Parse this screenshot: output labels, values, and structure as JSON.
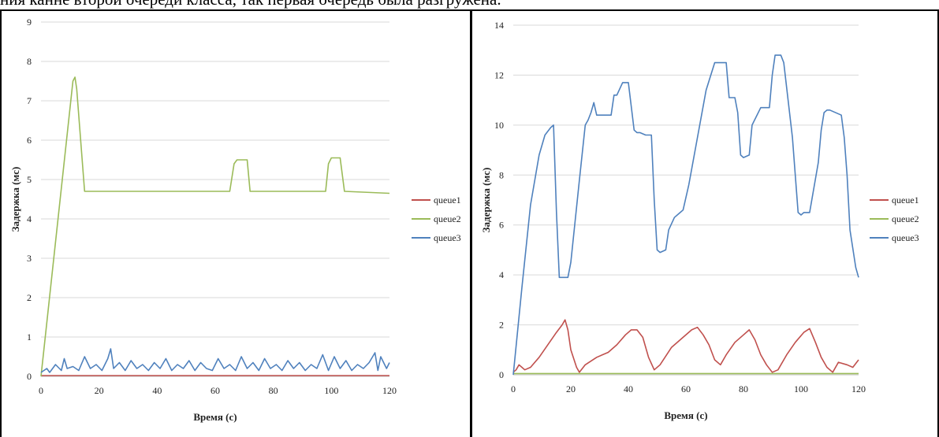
{
  "caption": "ния канне второй очереди класса, так первая очередь была разгружена.",
  "chart_data": [
    {
      "type": "line",
      "xlabel": "Время (с)",
      "ylabel": "Задержка (мс)",
      "xlim": [
        0,
        120
      ],
      "ylim": [
        0,
        9
      ],
      "xticks": [
        0,
        20,
        40,
        60,
        80,
        100,
        120
      ],
      "yticks": [
        0,
        1,
        2,
        3,
        4,
        5,
        6,
        7,
        8,
        9
      ],
      "grid": "horizontal",
      "legend": "right",
      "series": [
        {
          "name": "queue1",
          "color": "#c0504d",
          "x": [
            0,
            120
          ],
          "y": [
            0.02,
            0.02
          ]
        },
        {
          "name": "queue2",
          "color": "#9bbb59",
          "x": [
            0,
            11,
            11.7,
            12.3,
            15,
            16,
            40,
            65,
            66.5,
            67.5,
            71,
            72,
            98,
            99,
            100,
            103,
            104.5,
            120
          ],
          "y": [
            0,
            7.5,
            7.6,
            7.3,
            4.7,
            4.7,
            4.7,
            4.7,
            5.4,
            5.5,
            5.5,
            4.7,
            4.7,
            5.4,
            5.55,
            5.55,
            4.7,
            4.65
          ]
        },
        {
          "name": "queue3",
          "color": "#4f81bd",
          "x": [
            0,
            2,
            3,
            5,
            7,
            8,
            9,
            11,
            13,
            15,
            17,
            19,
            21,
            23,
            24,
            25,
            27,
            29,
            31,
            33,
            35,
            37,
            39,
            41,
            43,
            45,
            47,
            49,
            51,
            53,
            55,
            57,
            59,
            61,
            63,
            65,
            67,
            69,
            71,
            73,
            75,
            77,
            79,
            81,
            83,
            85,
            87,
            89,
            91,
            93,
            95,
            97,
            99,
            101,
            103,
            105,
            107,
            109,
            111,
            113,
            115,
            116,
            117,
            119,
            120
          ],
          "y": [
            0.1,
            0.2,
            0.1,
            0.3,
            0.15,
            0.45,
            0.2,
            0.25,
            0.15,
            0.5,
            0.2,
            0.3,
            0.15,
            0.45,
            0.7,
            0.2,
            0.35,
            0.15,
            0.4,
            0.2,
            0.3,
            0.15,
            0.35,
            0.2,
            0.45,
            0.15,
            0.3,
            0.2,
            0.4,
            0.15,
            0.35,
            0.2,
            0.15,
            0.45,
            0.2,
            0.3,
            0.15,
            0.5,
            0.2,
            0.35,
            0.15,
            0.45,
            0.2,
            0.3,
            0.15,
            0.4,
            0.2,
            0.35,
            0.15,
            0.3,
            0.2,
            0.55,
            0.15,
            0.5,
            0.2,
            0.4,
            0.15,
            0.3,
            0.2,
            0.35,
            0.6,
            0.15,
            0.5,
            0.2,
            0.35
          ]
        }
      ]
    },
    {
      "type": "line",
      "xlabel": "Время (с)",
      "ylabel": "Задержка (мс)",
      "xlim": [
        0,
        120
      ],
      "ylim": [
        0,
        14
      ],
      "xticks": [
        0,
        20,
        40,
        60,
        80,
        100,
        120
      ],
      "yticks": [
        0,
        2,
        4,
        6,
        8,
        10,
        12,
        14
      ],
      "grid": "horizontal",
      "legend": "right",
      "series": [
        {
          "name": "queue1",
          "color": "#c0504d",
          "x": [
            0,
            1,
            2,
            3,
            4,
            6,
            9,
            12,
            15,
            17,
            18,
            19,
            20,
            22,
            23,
            25,
            29,
            33,
            36,
            39,
            41,
            43,
            45,
            47,
            49,
            51,
            55,
            59,
            62,
            64,
            66,
            68,
            70,
            72,
            74,
            77,
            80,
            82,
            84,
            86,
            88,
            90,
            92,
            95,
            98,
            101,
            103,
            105,
            107,
            109,
            111,
            113,
            116,
            118,
            120
          ],
          "y": [
            0.1,
            0.2,
            0.4,
            0.3,
            0.2,
            0.3,
            0.7,
            1.2,
            1.7,
            2.0,
            2.2,
            1.8,
            1.0,
            0.3,
            0.1,
            0.4,
            0.7,
            0.9,
            1.2,
            1.6,
            1.8,
            1.8,
            1.5,
            0.7,
            0.2,
            0.4,
            1.1,
            1.5,
            1.8,
            1.9,
            1.6,
            1.2,
            0.6,
            0.4,
            0.8,
            1.3,
            1.6,
            1.8,
            1.4,
            0.8,
            0.4,
            0.1,
            0.2,
            0.8,
            1.3,
            1.7,
            1.85,
            1.3,
            0.7,
            0.3,
            0.1,
            0.5,
            0.4,
            0.3,
            0.6
          ]
        },
        {
          "name": "queue2",
          "color": "#9bbb59",
          "x": [
            0,
            30,
            60,
            90,
            120
          ],
          "y": [
            0.05,
            0.05,
            0.05,
            0.05,
            0.05
          ]
        },
        {
          "name": "queue3",
          "color": "#4f81bd",
          "x": [
            0,
            3,
            6,
            9,
            11,
            13,
            14,
            15,
            16,
            17,
            19,
            20,
            23,
            25,
            26,
            27,
            28,
            29,
            34,
            35,
            36,
            38,
            40,
            42,
            43,
            44,
            46,
            48,
            49,
            50,
            51,
            53,
            54,
            56,
            58,
            59,
            61,
            67,
            70,
            71,
            74,
            75,
            77,
            78,
            79,
            80,
            82,
            83,
            86,
            89,
            90,
            91,
            93,
            94,
            97,
            99,
            100,
            101,
            103,
            106,
            107,
            108,
            109,
            110,
            114,
            115,
            116,
            117,
            119,
            120
          ],
          "y": [
            0,
            3.5,
            6.8,
            8.8,
            9.6,
            9.9,
            10.0,
            6.5,
            3.9,
            3.9,
            3.9,
            4.5,
            7.8,
            10.0,
            10.2,
            10.5,
            10.9,
            10.4,
            10.4,
            11.2,
            11.2,
            11.7,
            11.7,
            9.8,
            9.7,
            9.7,
            9.6,
            9.6,
            7.0,
            5.0,
            4.9,
            5.0,
            5.8,
            6.3,
            6.5,
            6.6,
            7.6,
            11.4,
            12.5,
            12.5,
            12.5,
            11.1,
            11.1,
            10.5,
            8.8,
            8.7,
            8.8,
            10.0,
            10.7,
            10.7,
            12.0,
            12.8,
            12.8,
            12.5,
            9.5,
            6.5,
            6.4,
            6.5,
            6.5,
            8.5,
            9.8,
            10.5,
            10.6,
            10.6,
            10.4,
            9.5,
            8.0,
            5.8,
            4.3,
            3.9
          ]
        }
      ]
    }
  ]
}
